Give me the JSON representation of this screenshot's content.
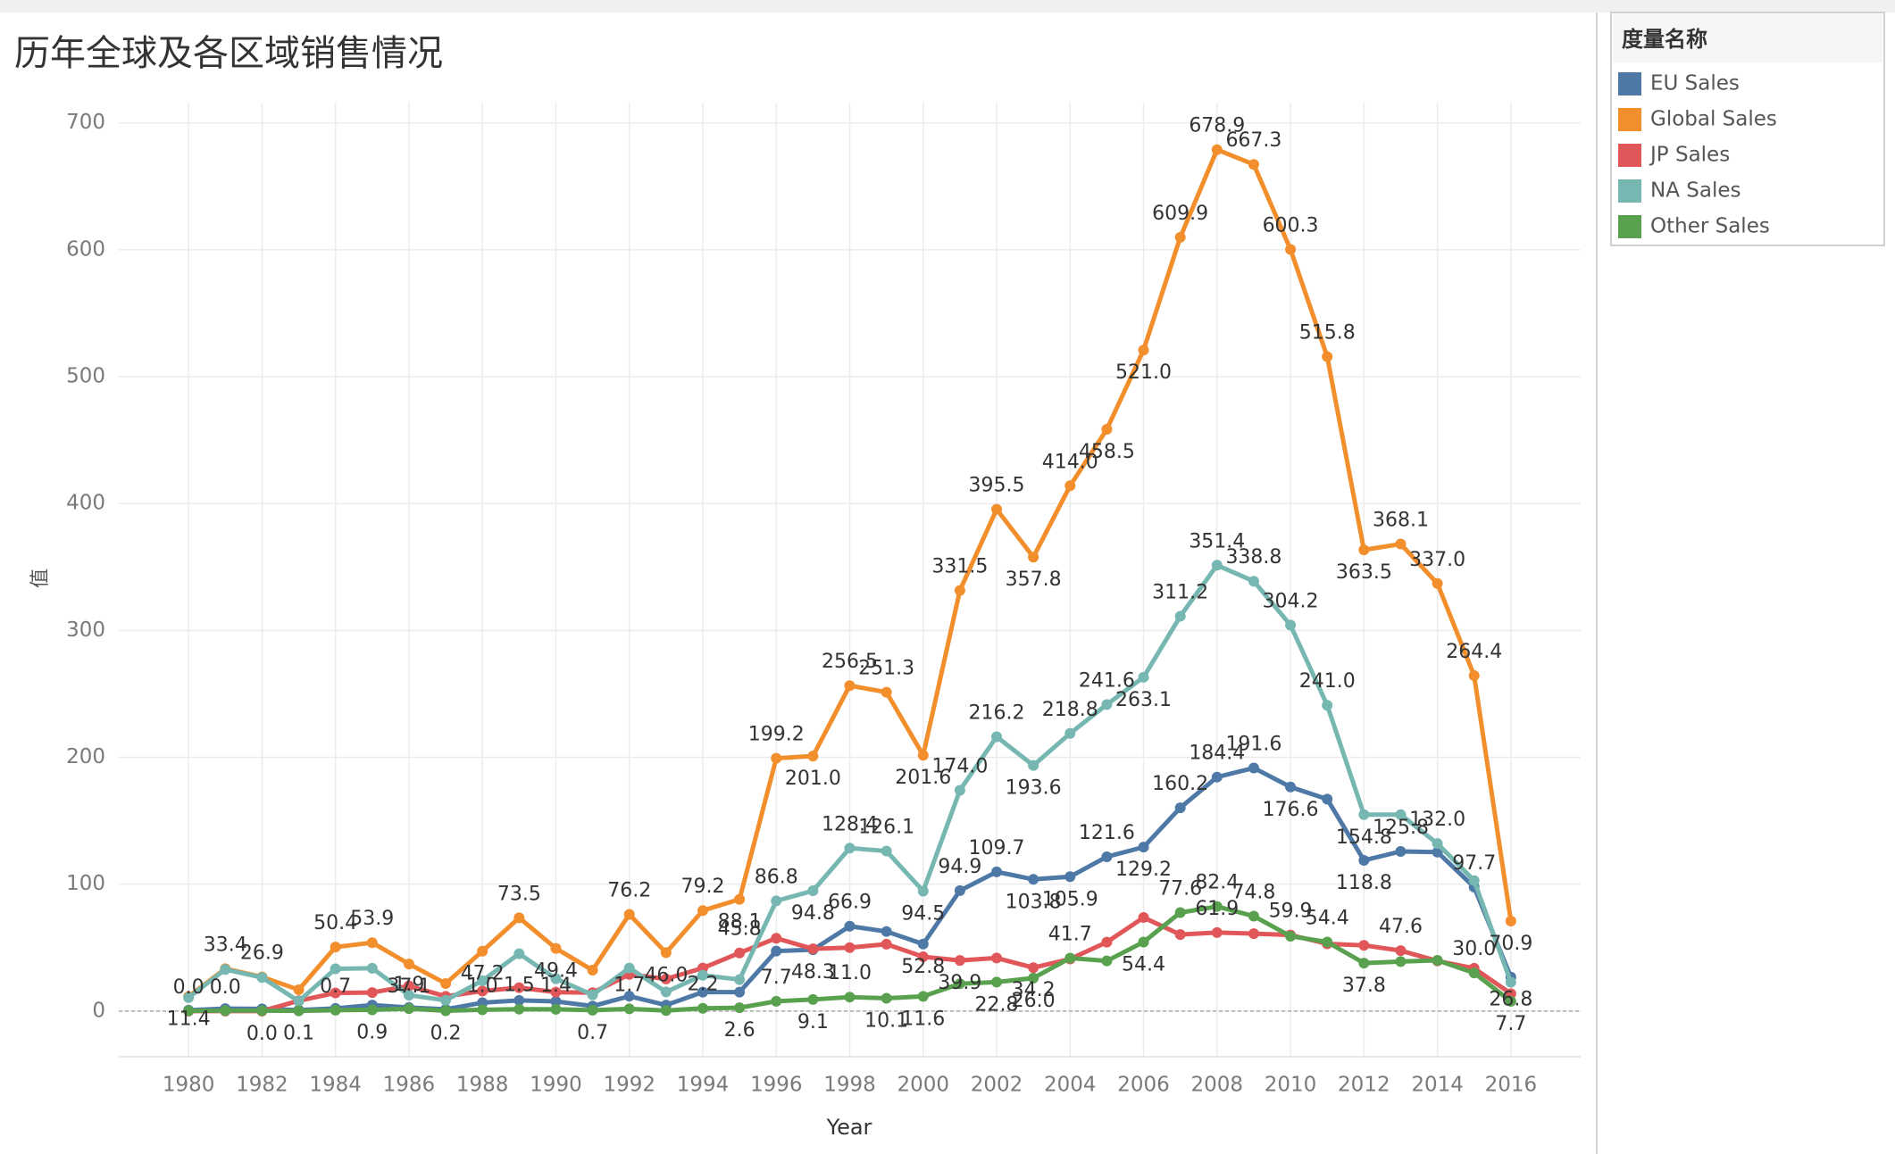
{
  "chart_data": {
    "type": "line",
    "title": "历年全球及各区域销售情况",
    "x_label": "Year",
    "y_label": "值",
    "legend_title": "度量名称",
    "legend_position": "right",
    "grid": true,
    "x": [
      1980,
      1981,
      1982,
      1983,
      1984,
      1985,
      1986,
      1987,
      1988,
      1989,
      1990,
      1991,
      1992,
      1993,
      1994,
      1995,
      1996,
      1997,
      1998,
      1999,
      2000,
      2001,
      2002,
      2003,
      2004,
      2005,
      2006,
      2007,
      2008,
      2009,
      2010,
      2011,
      2012,
      2013,
      2014,
      2015,
      2016
    ],
    "xlim": [
      1978.1,
      2017.9
    ],
    "xticks": [
      1980,
      1982,
      1984,
      1986,
      1988,
      1990,
      1992,
      1994,
      1996,
      1998,
      2000,
      2002,
      2004,
      2006,
      2008,
      2010,
      2012,
      2014,
      2016
    ],
    "ylim": [
      -36,
      716
    ],
    "yticks": [
      0,
      100,
      200,
      300,
      400,
      500,
      600,
      700
    ],
    "series": [
      {
        "name": "EU Sales",
        "color": "#4e79a7",
        "values": [
          0.7,
          1.9,
          1.7,
          0.8,
          2.1,
          4.7,
          2.8,
          1.4,
          6.6,
          8.4,
          7.6,
          3.9,
          11.7,
          4.7,
          14.9,
          14.9,
          47.3,
          48.3,
          66.9,
          62.7,
          52.8,
          94.9,
          109.7,
          103.8,
          105.9,
          121.6,
          129.2,
          160.2,
          184.4,
          191.6,
          176.6,
          167.0,
          118.8,
          125.8,
          125.3,
          97.7,
          26.8
        ],
        "value_labels": [
          null,
          null,
          null,
          null,
          null,
          null,
          null,
          null,
          null,
          null,
          null,
          null,
          null,
          null,
          null,
          null,
          null,
          "48.3",
          "66.9",
          null,
          "52.8",
          "94.9",
          "109.7",
          "103.8",
          "105.9",
          "121.6",
          "129.2",
          "160.2",
          "184.4",
          "191.6",
          "176.6",
          null,
          "118.8",
          "125.8",
          null,
          "97.7",
          "26.8"
        ]
      },
      {
        "name": "Global Sales",
        "color": "#f28e2b",
        "values": [
          11.4,
          33.4,
          26.9,
          16.8,
          50.4,
          53.9,
          37.1,
          21.7,
          47.2,
          73.5,
          49.4,
          32.2,
          76.2,
          46.0,
          79.2,
          88.1,
          199.2,
          201.0,
          256.5,
          251.3,
          201.6,
          331.5,
          395.5,
          357.8,
          414.0,
          458.5,
          521.0,
          609.9,
          678.9,
          667.3,
          600.3,
          515.8,
          363.5,
          368.1,
          337.0,
          264.4,
          70.9
        ],
        "value_labels": [
          "11.4",
          "33.4",
          "26.9",
          null,
          "50.4",
          "53.9",
          "37.1",
          null,
          "47.2",
          "73.5",
          "49.4",
          null,
          "76.2",
          "46.0",
          "79.2",
          "88.1",
          "199.2",
          "201.0",
          "256.5",
          "251.3",
          "201.6",
          "331.5",
          "395.5",
          "357.8",
          "414.0",
          "458.5",
          "521.0",
          "609.9",
          "678.9",
          "667.3",
          "600.3",
          "515.8",
          "363.5",
          "368.1",
          "337.0",
          "264.4",
          "70.9"
        ]
      },
      {
        "name": "JP Sales",
        "color": "#e15759",
        "values": [
          0.0,
          0.0,
          0.0,
          8.1,
          14.3,
          14.6,
          19.8,
          11.6,
          15.8,
          18.4,
          14.9,
          14.5,
          28.9,
          25.3,
          33.9,
          45.8,
          57.4,
          49.0,
          50.0,
          52.7,
          42.8,
          39.9,
          41.8,
          34.2,
          41.0,
          54.3,
          73.7,
          60.3,
          61.9,
          61.0,
          59.9,
          53.0,
          51.8,
          47.6,
          39.5,
          33.7,
          13.7
        ],
        "value_labels": [
          "0.0",
          "0.0",
          "0.0",
          null,
          null,
          null,
          null,
          null,
          null,
          null,
          null,
          null,
          null,
          null,
          null,
          "45.8",
          null,
          null,
          null,
          null,
          null,
          "39.9",
          null,
          "34.2",
          null,
          null,
          null,
          null,
          "61.9",
          null,
          "59.9",
          null,
          null,
          "47.6",
          null,
          null,
          null
        ]
      },
      {
        "name": "NA Sales",
        "color": "#76b7b2",
        "values": [
          10.6,
          32.8,
          26.4,
          7.8,
          33.3,
          33.7,
          12.5,
          8.5,
          23.9,
          45.2,
          25.5,
          12.8,
          33.9,
          15.1,
          28.2,
          24.8,
          86.8,
          94.8,
          128.4,
          126.1,
          94.5,
          174.0,
          216.2,
          193.6,
          218.8,
          241.6,
          263.1,
          311.2,
          351.4,
          338.8,
          304.2,
          241.0,
          154.8,
          154.8,
          132.0,
          102.8,
          22.7
        ],
        "value_labels": [
          null,
          null,
          null,
          null,
          null,
          null,
          null,
          null,
          null,
          null,
          null,
          null,
          null,
          null,
          null,
          null,
          "86.8",
          "94.8",
          "128.4",
          "126.1",
          "94.5",
          "174.0",
          "216.2",
          "193.6",
          "218.8",
          "241.6",
          "263.1",
          "311.2",
          "351.4",
          "338.8",
          "304.2",
          "241.0",
          "154.8",
          null,
          "132.0",
          null,
          null
        ]
      },
      {
        "name": "Other Sales",
        "color": "#59a14f",
        "values": [
          0.1,
          0.3,
          0.3,
          0.1,
          0.7,
          0.9,
          1.9,
          0.2,
          1.0,
          1.5,
          1.4,
          0.7,
          1.7,
          0.4,
          2.2,
          2.6,
          7.7,
          9.1,
          11.0,
          10.1,
          11.6,
          21.5,
          22.8,
          26.0,
          41.7,
          39.5,
          54.4,
          77.6,
          82.4,
          74.8,
          59.0,
          54.4,
          37.8,
          39.0,
          40.0,
          30.0,
          7.7
        ],
        "value_labels": [
          null,
          null,
          null,
          "0.1",
          "0.7",
          "0.9",
          "1.9",
          "0.2",
          "1.0",
          "1.5",
          "1.4",
          "0.7",
          "1.7",
          null,
          "2.2",
          "2.6",
          "7.7",
          "9.1",
          "11.0",
          "10.1",
          "11.6",
          null,
          "22.8",
          "26.0",
          "41.7",
          null,
          "54.4",
          "77.6",
          "82.4",
          "74.8",
          null,
          "54.4",
          "37.8",
          null,
          null,
          "30.0",
          "7.7"
        ]
      }
    ]
  }
}
